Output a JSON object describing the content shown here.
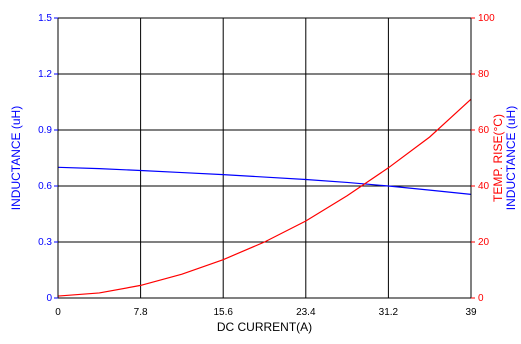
{
  "chart_data": {
    "type": "line",
    "x_axis": {
      "label": "DC CURRENT(A)",
      "range": [
        0,
        39
      ],
      "ticks": [
        0,
        7.8,
        15.6,
        23.4,
        31.2,
        39
      ],
      "tick_labels": [
        "0",
        "7.8",
        "15.6",
        "23.4",
        "31.2",
        "39"
      ]
    },
    "y_axis_left": {
      "label": "INDUCTANCE (uH)",
      "range": [
        0,
        1.5
      ],
      "ticks": [
        0,
        0.3,
        0.6,
        0.9,
        1.2,
        1.5
      ],
      "tick_labels": [
        "0",
        "0.3",
        "0.6",
        "0.9",
        "1.2",
        "1.5"
      ],
      "color": "#0000ff"
    },
    "y_axis_right": {
      "label_lines": [
        "TEMP. RISE(°C)",
        "INDUCTANCE (uH)"
      ],
      "label_colors": [
        "#ff0000",
        "#0000ff"
      ],
      "range": [
        0,
        100
      ],
      "ticks": [
        0,
        20,
        40,
        60,
        80,
        100
      ],
      "tick_labels": [
        "0",
        "20",
        "40",
        "60",
        "80",
        "100"
      ],
      "color": "#ff0000"
    },
    "grid": true,
    "series": [
      {
        "color": "#0000ff",
        "axis": "left",
        "x": [
          0,
          3.9,
          7.8,
          11.7,
          15.6,
          19.5,
          23.4,
          27.3,
          31.2,
          35.1,
          39
        ],
        "y": [
          0.7,
          0.693,
          0.683,
          0.672,
          0.661,
          0.648,
          0.635,
          0.619,
          0.6,
          0.578,
          0.555
        ]
      },
      {
        "color": "#ff0000",
        "axis": "right",
        "x": [
          0,
          3.9,
          7.8,
          11.7,
          15.6,
          19.5,
          23.4,
          27.3,
          31.2,
          35.1,
          39
        ],
        "y": [
          0.7,
          1.8,
          4.5,
          8.5,
          13.7,
          20,
          27.5,
          36.5,
          46.5,
          57.5,
          71
        ]
      }
    ]
  }
}
